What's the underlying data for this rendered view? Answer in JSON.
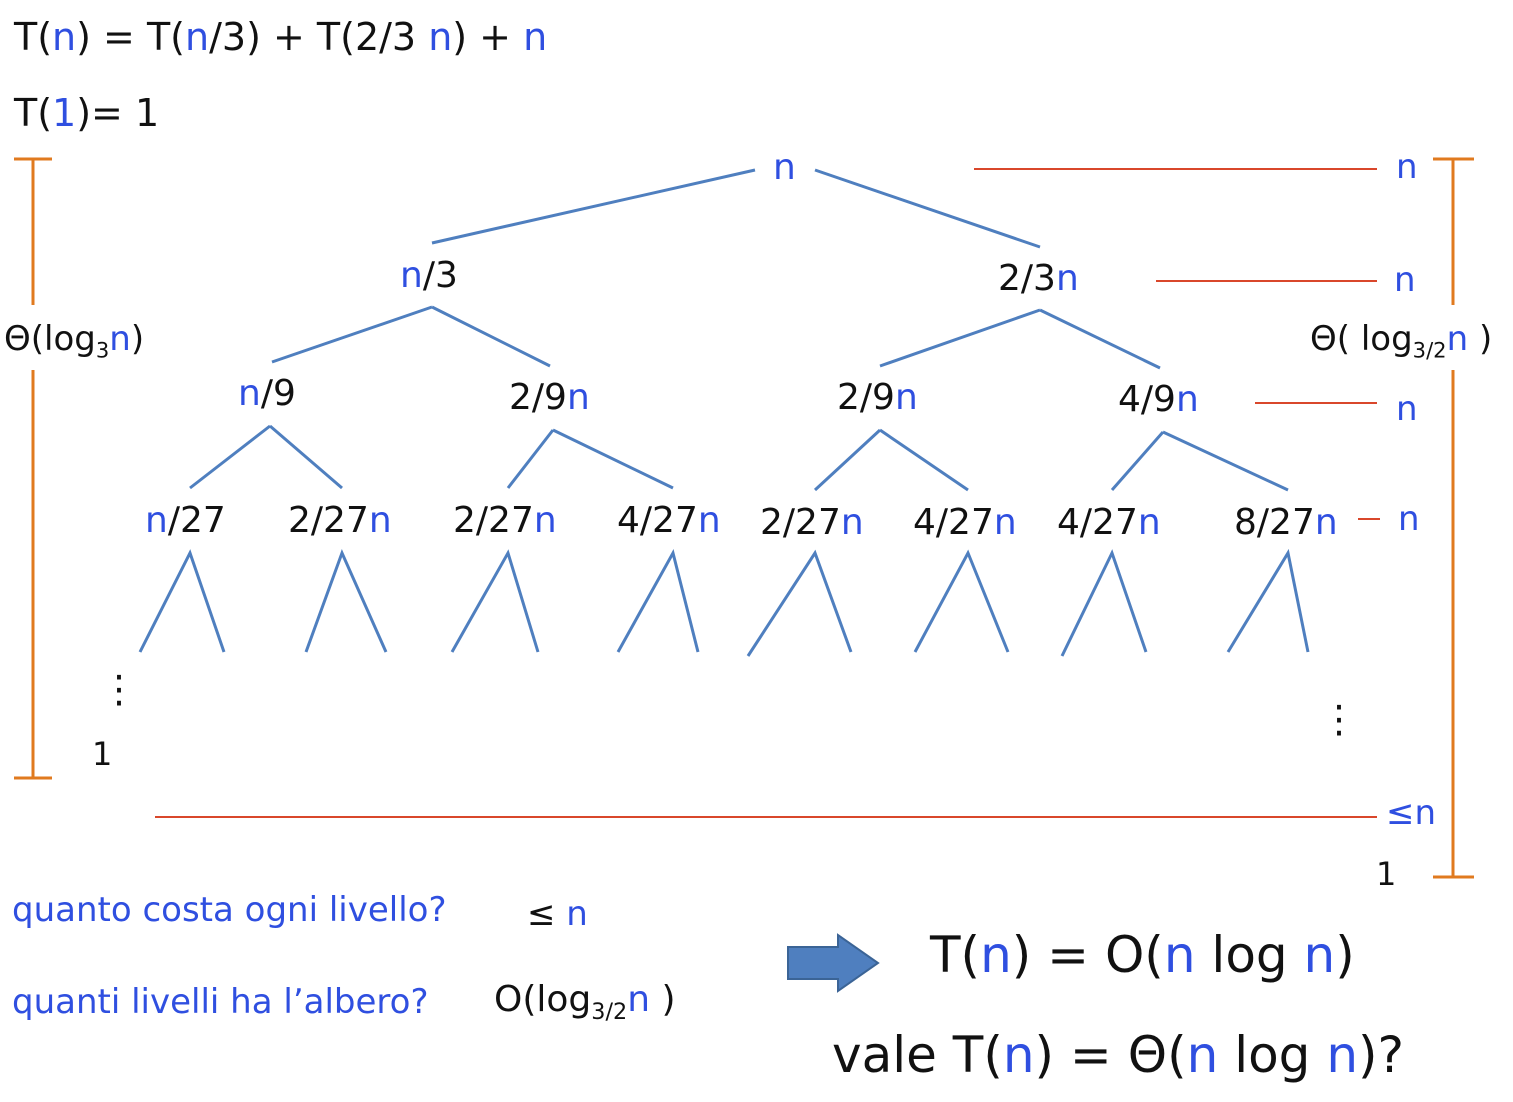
{
  "recurrence": {
    "line1": {
      "a": "T(",
      "n1": "n",
      "b": ") = T(",
      "n2": "n",
      "c": "/3) + T(2/3 ",
      "n3": "n",
      "d": ") + ",
      "n4": "n"
    },
    "line2": {
      "a": "T(",
      "one": "1",
      "b": ")= 1"
    }
  },
  "tree": {
    "root": {
      "var": "n"
    },
    "level1": [
      {
        "var": "n",
        "suffix": "/3"
      },
      {
        "prefix": "2/3",
        "var": "n"
      }
    ],
    "level2": [
      {
        "var": "n",
        "suffix": "/9"
      },
      {
        "prefix": "2/9",
        "var": "n"
      },
      {
        "prefix": "2/9",
        "var": "n"
      },
      {
        "prefix": "4/9",
        "var": "n"
      }
    ],
    "level3": [
      {
        "var": "n",
        "suffix": "/27"
      },
      {
        "prefix": "2/27",
        "var": "n"
      },
      {
        "prefix": "2/27",
        "var": "n"
      },
      {
        "prefix": "4/27",
        "var": "n"
      },
      {
        "prefix": "2/27",
        "var": "n"
      },
      {
        "prefix": "4/27",
        "var": "n"
      },
      {
        "prefix": "4/27",
        "var": "n"
      },
      {
        "prefix": "8/27",
        "var": "n"
      }
    ],
    "left_dots": "⋮",
    "right_dots": "⋮",
    "leaf_one": "1"
  },
  "level_costs": [
    "n",
    "n",
    "n",
    "n"
  ],
  "last_level_cost": "≤n",
  "right_bottom_one": "1",
  "left_height": {
    "prefix": "Θ(log",
    "sub": "3",
    "var": "n",
    "suffix": ")"
  },
  "right_height": {
    "prefix": "Θ( log",
    "sub": "3/2",
    "var": "n",
    "suffix": " )"
  },
  "questions": {
    "q1": {
      "text": "quanto costa ogni livello?",
      "answer_symbol": "≤ ",
      "answer_var": "n"
    },
    "q2": {
      "text": "quanti livelli ha l’albero?",
      "answer_prefix": "O(log",
      "answer_sub": "3/2",
      "answer_var": "n",
      "answer_suffix": " )"
    }
  },
  "conclusion": {
    "line1": {
      "a": "T(",
      "n1": "n",
      "b": ") = O(",
      "n2": "n",
      "c": " log ",
      "n3": "n",
      "d": ")"
    },
    "line2": {
      "a": "vale T(",
      "n1": "n",
      "b": ") = Θ(",
      "n2": "n",
      "c": " log ",
      "n3": "n",
      "d": ")?"
    }
  },
  "colors": {
    "text": "#111111",
    "variable": "#2f4fe0",
    "tree_edge": "#4f7fbf",
    "level_line": "#d9472b",
    "height_bracket": "#e07a1f",
    "arrow": "#4f7fbf"
  }
}
